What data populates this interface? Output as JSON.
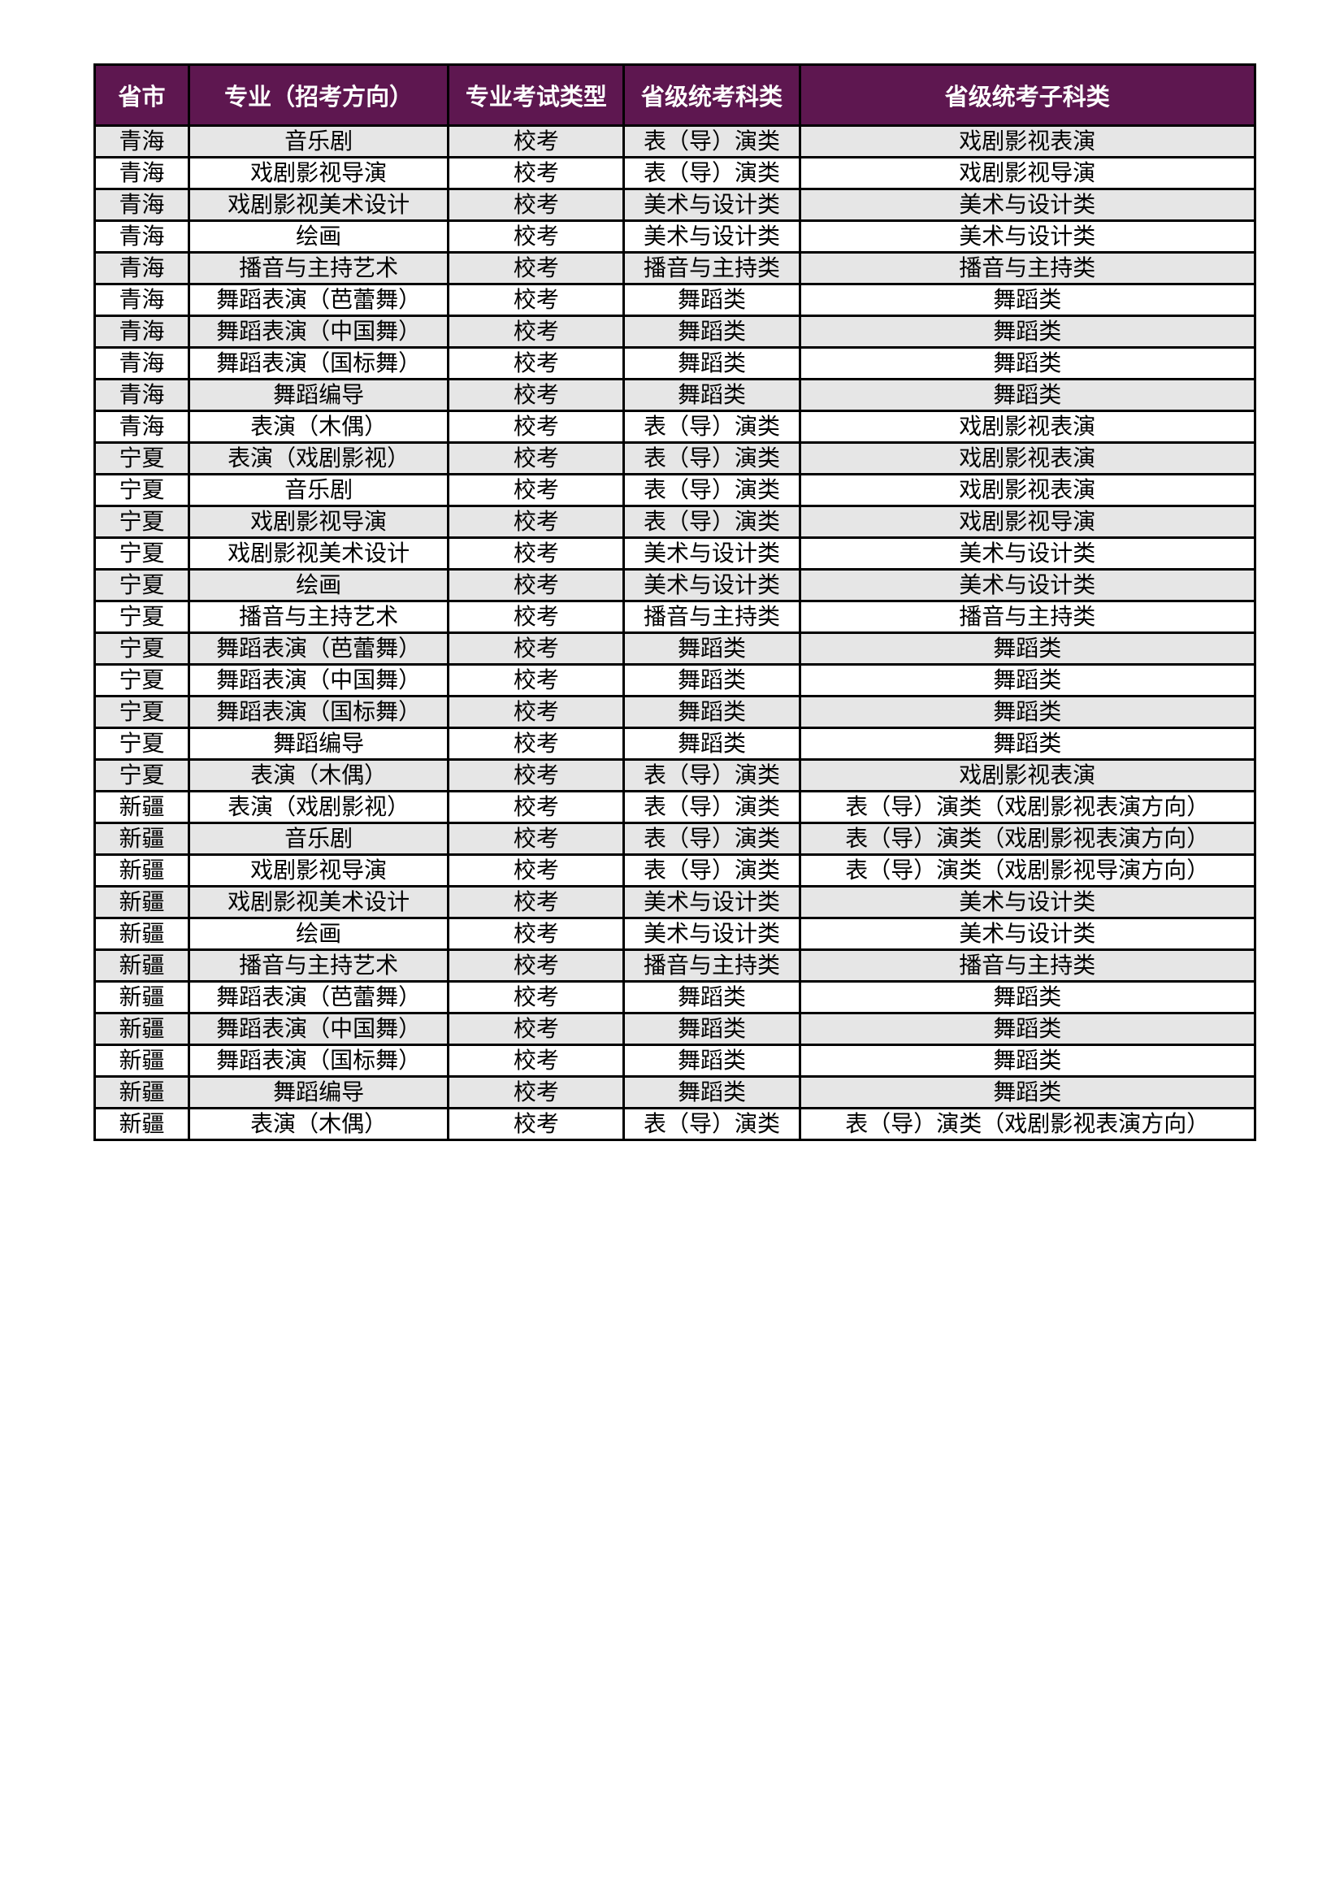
{
  "table": {
    "headers": [
      "省市",
      "专业（招考方向）",
      "专业考试类型",
      "省级统考科类",
      "省级统考子科类"
    ],
    "rows": [
      [
        "青海",
        "音乐剧",
        "校考",
        "表（导）演类",
        "戏剧影视表演"
      ],
      [
        "青海",
        "戏剧影视导演",
        "校考",
        "表（导）演类",
        "戏剧影视导演"
      ],
      [
        "青海",
        "戏剧影视美术设计",
        "校考",
        "美术与设计类",
        "美术与设计类"
      ],
      [
        "青海",
        "绘画",
        "校考",
        "美术与设计类",
        "美术与设计类"
      ],
      [
        "青海",
        "播音与主持艺术",
        "校考",
        "播音与主持类",
        "播音与主持类"
      ],
      [
        "青海",
        "舞蹈表演（芭蕾舞）",
        "校考",
        "舞蹈类",
        "舞蹈类"
      ],
      [
        "青海",
        "舞蹈表演（中国舞）",
        "校考",
        "舞蹈类",
        "舞蹈类"
      ],
      [
        "青海",
        "舞蹈表演（国标舞）",
        "校考",
        "舞蹈类",
        "舞蹈类"
      ],
      [
        "青海",
        "舞蹈编导",
        "校考",
        "舞蹈类",
        "舞蹈类"
      ],
      [
        "青海",
        "表演（木偶）",
        "校考",
        "表（导）演类",
        "戏剧影视表演"
      ],
      [
        "宁夏",
        "表演（戏剧影视）",
        "校考",
        "表（导）演类",
        "戏剧影视表演"
      ],
      [
        "宁夏",
        "音乐剧",
        "校考",
        "表（导）演类",
        "戏剧影视表演"
      ],
      [
        "宁夏",
        "戏剧影视导演",
        "校考",
        "表（导）演类",
        "戏剧影视导演"
      ],
      [
        "宁夏",
        "戏剧影视美术设计",
        "校考",
        "美术与设计类",
        "美术与设计类"
      ],
      [
        "宁夏",
        "绘画",
        "校考",
        "美术与设计类",
        "美术与设计类"
      ],
      [
        "宁夏",
        "播音与主持艺术",
        "校考",
        "播音与主持类",
        "播音与主持类"
      ],
      [
        "宁夏",
        "舞蹈表演（芭蕾舞）",
        "校考",
        "舞蹈类",
        "舞蹈类"
      ],
      [
        "宁夏",
        "舞蹈表演（中国舞）",
        "校考",
        "舞蹈类",
        "舞蹈类"
      ],
      [
        "宁夏",
        "舞蹈表演（国标舞）",
        "校考",
        "舞蹈类",
        "舞蹈类"
      ],
      [
        "宁夏",
        "舞蹈编导",
        "校考",
        "舞蹈类",
        "舞蹈类"
      ],
      [
        "宁夏",
        "表演（木偶）",
        "校考",
        "表（导）演类",
        "戏剧影视表演"
      ],
      [
        "新疆",
        "表演（戏剧影视）",
        "校考",
        "表（导）演类",
        "表（导）演类（戏剧影视表演方向）"
      ],
      [
        "新疆",
        "音乐剧",
        "校考",
        "表（导）演类",
        "表（导）演类（戏剧影视表演方向）"
      ],
      [
        "新疆",
        "戏剧影视导演",
        "校考",
        "表（导）演类",
        "表（导）演类（戏剧影视导演方向）"
      ],
      [
        "新疆",
        "戏剧影视美术设计",
        "校考",
        "美术与设计类",
        "美术与设计类"
      ],
      [
        "新疆",
        "绘画",
        "校考",
        "美术与设计类",
        "美术与设计类"
      ],
      [
        "新疆",
        "播音与主持艺术",
        "校考",
        "播音与主持类",
        "播音与主持类"
      ],
      [
        "新疆",
        "舞蹈表演（芭蕾舞）",
        "校考",
        "舞蹈类",
        "舞蹈类"
      ],
      [
        "新疆",
        "舞蹈表演（中国舞）",
        "校考",
        "舞蹈类",
        "舞蹈类"
      ],
      [
        "新疆",
        "舞蹈表演（国标舞）",
        "校考",
        "舞蹈类",
        "舞蹈类"
      ],
      [
        "新疆",
        "舞蹈编导",
        "校考",
        "舞蹈类",
        "舞蹈类"
      ],
      [
        "新疆",
        "表演（木偶）",
        "校考",
        "表（导）演类",
        "表（导）演类（戏剧影视表演方向）"
      ]
    ]
  },
  "colors": {
    "header_bg": "#5e1750",
    "stripe": "#e6e6e6"
  }
}
